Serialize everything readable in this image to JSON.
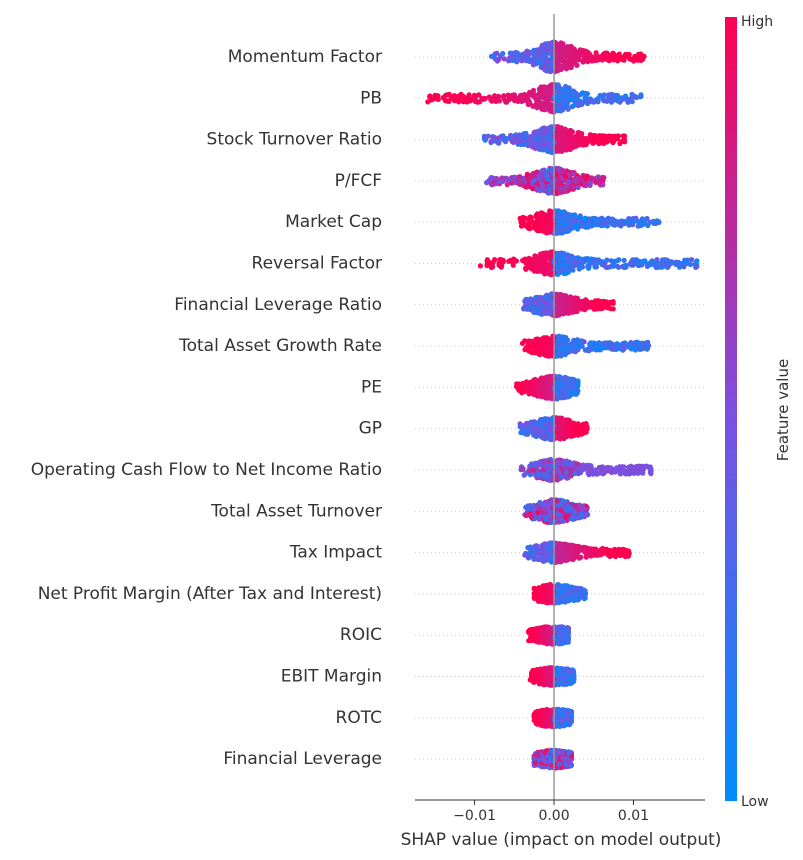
{
  "chart_data": {
    "type": "scatter",
    "subtype": "shap-beeswarm-summary",
    "xlabel": "SHAP value (impact on model output)",
    "xlim": [
      -0.0175,
      0.019
    ],
    "xticks": [
      {
        "value": -0.01,
        "label": "−0.01"
      },
      {
        "value": 0.0,
        "label": "0.00"
      },
      {
        "value": 0.01,
        "label": "0.01"
      }
    ],
    "zero_line": 0.0,
    "colorbar": {
      "label": "Feature value",
      "high_label": "High",
      "low_label": "Low",
      "low_color": "#008bfb",
      "high_color": "#ff0051"
    },
    "features": [
      {
        "name": "Momentum Factor",
        "min": -0.008,
        "max": 0.0115,
        "trend": "high-positive",
        "spread": 1.0
      },
      {
        "name": "PB",
        "min": -0.016,
        "max": 0.011,
        "trend": "high-negative",
        "spread": 0.9
      },
      {
        "name": "Stock Turnover Ratio",
        "min": -0.009,
        "max": 0.009,
        "trend": "high-positive",
        "spread": 0.85
      },
      {
        "name": "P/FCF",
        "min": -0.0085,
        "max": 0.0063,
        "trend": "high-mixed",
        "spread": 0.8
      },
      {
        "name": "Market Cap",
        "min": -0.0045,
        "max": 0.0133,
        "trend": "high-negative",
        "spread": 0.7
      },
      {
        "name": "Reversal Factor",
        "min": -0.0093,
        "max": 0.0182,
        "trend": "high-negative",
        "spread": 0.7
      },
      {
        "name": "Financial Leverage Ratio",
        "min": -0.004,
        "max": 0.0075,
        "trend": "high-positive",
        "spread": 0.65
      },
      {
        "name": "Total Asset Growth Rate",
        "min": -0.004,
        "max": 0.012,
        "trend": "high-negative",
        "spread": 0.6
      },
      {
        "name": "PE",
        "min": -0.0048,
        "max": 0.003,
        "trend": "high-negative",
        "spread": 0.7
      },
      {
        "name": "GP",
        "min": -0.0043,
        "max": 0.0042,
        "trend": "high-positive",
        "spread": 0.65
      },
      {
        "name": "Operating Cash Flow to Net Income Ratio",
        "min": -0.0045,
        "max": 0.0123,
        "trend": "mid-positive",
        "spread": 0.6
      },
      {
        "name": "Total Asset Turnover",
        "min": -0.0038,
        "max": 0.0043,
        "trend": "mixed",
        "spread": 0.7
      },
      {
        "name": "Tax Impact",
        "min": -0.0038,
        "max": 0.0095,
        "trend": "high-positive",
        "spread": 0.55
      },
      {
        "name": "Net Profit Margin (After Tax and Interest)",
        "min": -0.0025,
        "max": 0.004,
        "trend": "high-negative",
        "spread": 0.5
      },
      {
        "name": "ROIC",
        "min": -0.0032,
        "max": 0.0018,
        "trend": "high-negative",
        "spread": 0.45
      },
      {
        "name": "EBIT Margin",
        "min": -0.003,
        "max": 0.0025,
        "trend": "high-negative",
        "spread": 0.45
      },
      {
        "name": "ROTC",
        "min": -0.0025,
        "max": 0.0022,
        "trend": "high-negative",
        "spread": 0.45
      },
      {
        "name": "Financial Leverage",
        "min": -0.0025,
        "max": 0.0022,
        "trend": "mixed",
        "spread": 0.45
      }
    ]
  }
}
